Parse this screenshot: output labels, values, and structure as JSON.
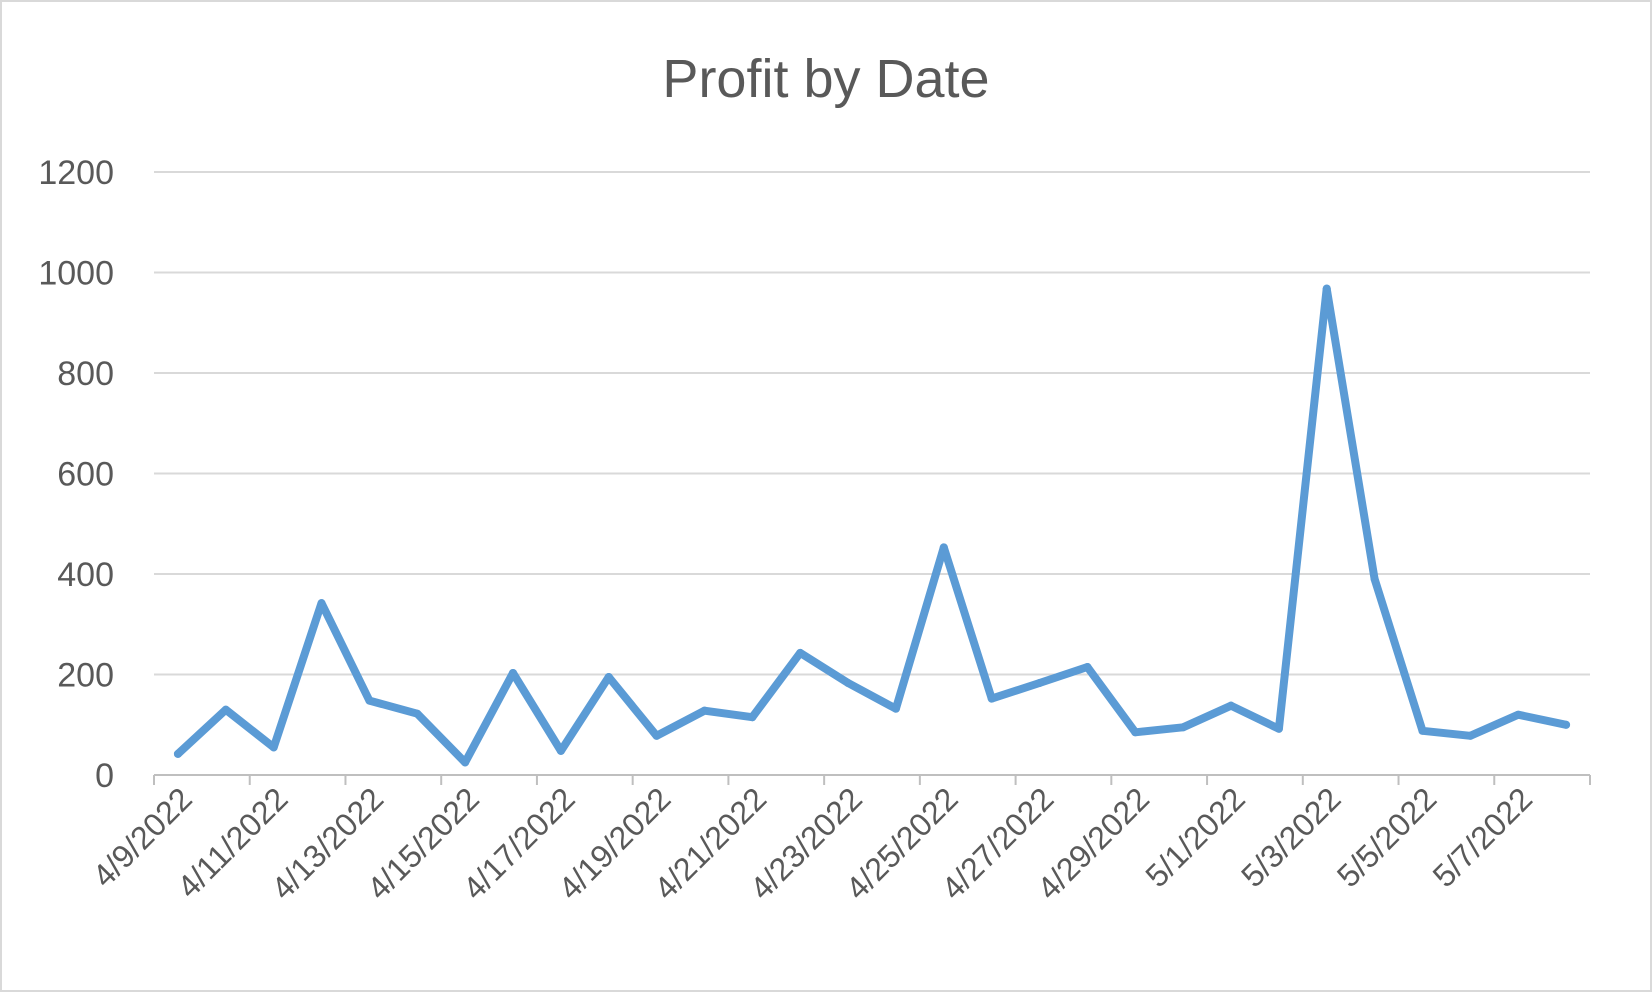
{
  "chart_data": {
    "type": "line",
    "title": "Profit by Date",
    "xlabel": "",
    "ylabel": "",
    "ylim": [
      0,
      1200
    ],
    "yticks": [
      0,
      200,
      400,
      600,
      800,
      1000,
      1200
    ],
    "x_range": [
      "4/9/2022",
      "5/8/2022"
    ],
    "x_tick_labels": [
      "4/9/2022",
      "4/11/2022",
      "4/13/2022",
      "4/15/2022",
      "4/17/2022",
      "4/19/2022",
      "4/21/2022",
      "4/23/2022",
      "4/25/2022",
      "4/27/2022",
      "4/29/2022",
      "5/1/2022",
      "5/3/2022",
      "5/5/2022",
      "5/7/2022"
    ],
    "grid": true,
    "legend": "none",
    "colors": {
      "line": "#5b9bd5",
      "grid": "#d9d9d9",
      "axis": "#bfbfbf",
      "text": "#595959"
    },
    "series": [
      {
        "x": [
          "4/9/2022",
          "4/10/2022",
          "4/11/2022",
          "4/12/2022",
          "4/13/2022",
          "4/14/2022",
          "4/15/2022",
          "4/16/2022",
          "4/17/2022",
          "4/18/2022",
          "4/19/2022",
          "4/20/2022",
          "4/21/2022",
          "4/22/2022",
          "4/23/2022",
          "4/24/2022",
          "4/25/2022",
          "4/26/2022",
          "4/27/2022",
          "4/28/2022",
          "4/29/2022",
          "4/30/2022",
          "5/1/2022",
          "5/2/2022",
          "5/3/2022",
          "5/4/2022",
          "5/5/2022",
          "5/6/2022",
          "5/7/2022",
          "5/8/2022"
        ],
        "values": [
          42,
          130,
          55,
          342,
          148,
          122,
          25,
          203,
          48,
          195,
          78,
          128,
          115,
          243,
          183,
          132,
          453,
          152,
          183,
          215,
          85,
          95,
          138,
          92,
          968,
          390,
          88,
          78,
          120,
          100
        ]
      }
    ]
  }
}
